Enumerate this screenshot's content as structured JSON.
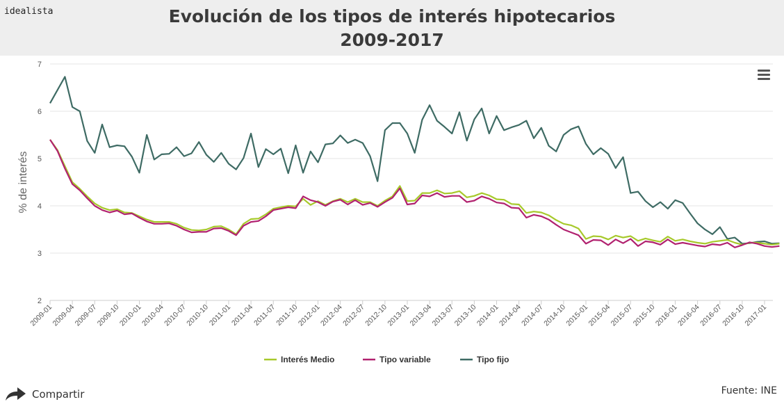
{
  "brand": "idealista",
  "title_line1": "Evolución de los tipos de interés hipotecarios",
  "title_line2": "2009-2017",
  "menu_icon": "hamburger-menu-icon",
  "share_icon": "share-arrow-icon",
  "share_label": "Compartir",
  "source": "Fuente: INE",
  "colors": {
    "medio": "#a7c92b",
    "variable": "#b1216f",
    "fijo": "#3e6b64",
    "header_bg": "#eeeeee"
  },
  "chart_data": {
    "type": "line",
    "title": "Evolución de los tipos de interés hipotecarios 2009-2017",
    "xlabel": "",
    "ylabel": "% de interés",
    "ylim": [
      2,
      7
    ],
    "yticks": [
      2,
      3,
      4,
      5,
      6,
      7
    ],
    "grid": true,
    "legend_position": "bottom-center",
    "x_start": "2009-01",
    "x_end": "2017-02",
    "x_tick_labels": [
      "2009-01",
      "2009-04",
      "2009-07",
      "2009-10",
      "2010-01",
      "2010-04",
      "2010-07",
      "2010-10",
      "2011-01",
      "2011-04",
      "2011-07",
      "2011-10",
      "2012-01",
      "2012-04",
      "2012-07",
      "2012-10",
      "2013-01",
      "2013-04",
      "2013-07",
      "2013-10",
      "2014-01",
      "2014-04",
      "2014-07",
      "2014-10",
      "2015-01",
      "2015-04",
      "2015-07",
      "2015-10",
      "2016-01",
      "2016-04",
      "2016-07",
      "2016-10",
      "2017-01"
    ],
    "series": [
      {
        "name": "Interés Medio",
        "values": [
          5.4,
          5.18,
          4.84,
          4.5,
          4.36,
          4.2,
          4.05,
          3.96,
          3.91,
          3.93,
          3.86,
          3.85,
          3.78,
          3.71,
          3.66,
          3.66,
          3.66,
          3.62,
          3.54,
          3.49,
          3.48,
          3.5,
          3.56,
          3.57,
          3.5,
          3.4,
          3.62,
          3.72,
          3.73,
          3.82,
          3.94,
          3.97,
          4.0,
          3.99,
          4.15,
          4.02,
          4.1,
          4.02,
          4.1,
          4.15,
          4.08,
          4.15,
          4.08,
          4.08,
          4.0,
          4.11,
          4.2,
          4.42,
          4.1,
          4.11,
          4.27,
          4.27,
          4.33,
          4.26,
          4.27,
          4.31,
          4.18,
          4.21,
          4.27,
          4.22,
          4.14,
          4.13,
          4.04,
          4.03,
          3.85,
          3.88,
          3.86,
          3.8,
          3.7,
          3.62,
          3.59,
          3.52,
          3.3,
          3.36,
          3.35,
          3.29,
          3.37,
          3.33,
          3.36,
          3.26,
          3.31,
          3.27,
          3.24,
          3.35,
          3.26,
          3.29,
          3.25,
          3.22,
          3.2,
          3.24,
          3.26,
          3.28,
          3.22,
          3.18,
          3.22,
          3.22,
          3.2,
          3.18,
          3.2
        ]
      },
      {
        "name": "Tipo variable",
        "values": [
          5.4,
          5.16,
          4.79,
          4.46,
          4.33,
          4.16,
          4.0,
          3.91,
          3.86,
          3.9,
          3.82,
          3.84,
          3.75,
          3.67,
          3.62,
          3.62,
          3.63,
          3.58,
          3.5,
          3.44,
          3.45,
          3.45,
          3.52,
          3.53,
          3.47,
          3.38,
          3.58,
          3.66,
          3.68,
          3.78,
          3.91,
          3.94,
          3.97,
          3.95,
          4.2,
          4.12,
          4.08,
          4.0,
          4.09,
          4.13,
          4.03,
          4.12,
          4.02,
          4.06,
          3.98,
          4.08,
          4.17,
          4.37,
          4.03,
          4.05,
          4.22,
          4.2,
          4.27,
          4.19,
          4.21,
          4.21,
          4.08,
          4.11,
          4.2,
          4.15,
          4.07,
          4.05,
          3.96,
          3.95,
          3.75,
          3.81,
          3.78,
          3.71,
          3.6,
          3.5,
          3.44,
          3.38,
          3.2,
          3.28,
          3.27,
          3.17,
          3.29,
          3.21,
          3.3,
          3.15,
          3.25,
          3.23,
          3.18,
          3.29,
          3.19,
          3.22,
          3.19,
          3.16,
          3.14,
          3.19,
          3.17,
          3.22,
          3.12,
          3.17,
          3.23,
          3.2,
          3.15,
          3.13,
          3.15
        ]
      },
      {
        "name": "Tipo fijo",
        "values": [
          6.17,
          6.45,
          6.73,
          6.09,
          6.0,
          5.37,
          5.12,
          5.72,
          5.24,
          5.28,
          5.26,
          5.04,
          4.7,
          5.5,
          4.98,
          5.09,
          5.1,
          5.24,
          5.05,
          5.11,
          5.35,
          5.08,
          4.93,
          5.12,
          4.89,
          4.77,
          5.01,
          5.53,
          4.82,
          5.2,
          5.09,
          5.21,
          4.69,
          5.28,
          4.7,
          5.15,
          4.92,
          5.3,
          5.32,
          5.49,
          5.33,
          5.4,
          5.33,
          5.05,
          4.52,
          5.6,
          5.75,
          5.75,
          5.53,
          5.12,
          5.82,
          6.13,
          5.8,
          5.67,
          5.53,
          5.98,
          5.38,
          5.83,
          6.06,
          5.53,
          5.9,
          5.6,
          5.66,
          5.71,
          5.8,
          5.43,
          5.65,
          5.27,
          5.15,
          5.5,
          5.62,
          5.68,
          5.31,
          5.09,
          5.22,
          5.1,
          4.8,
          5.03,
          4.27,
          4.3,
          4.1,
          3.97,
          4.08,
          3.94,
          4.12,
          4.06,
          3.84,
          3.63,
          3.5,
          3.4,
          3.55,
          3.3,
          3.33,
          3.2,
          3.21,
          3.24,
          3.25,
          3.2,
          3.21
        ]
      }
    ]
  }
}
